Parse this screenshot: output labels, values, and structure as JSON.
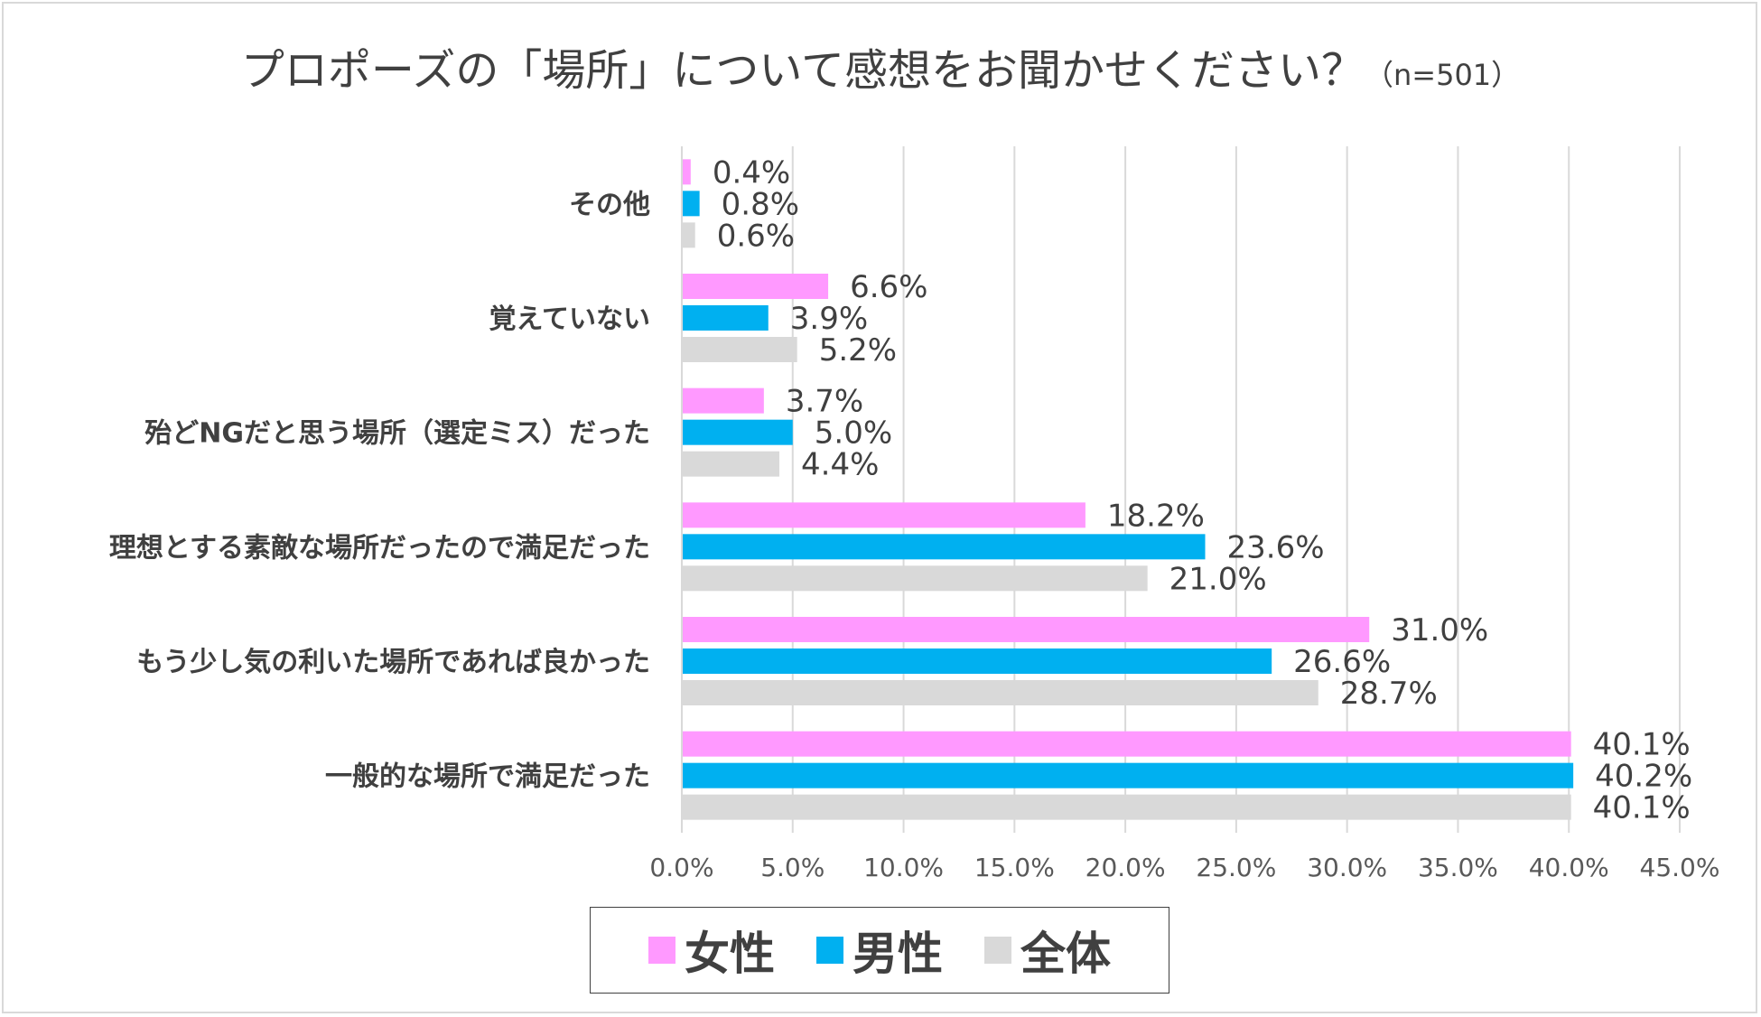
{
  "chart_data": {
    "type": "bar",
    "orientation": "horizontal",
    "title": "プロポーズの「場所」について感想をお聞かせください？",
    "subtitle": "（n=501）",
    "categories": [
      "その他",
      "覚えていない",
      "殆どNGだと思う場所（選定ミス）だった",
      "理想とする素敵な場所だったので満足だった",
      "もう少し気の利いた場所であれば良かった",
      "一般的な場所で満足だった"
    ],
    "series": [
      {
        "name": "女性",
        "color": "#ff99ff",
        "values": [
          0.4,
          6.6,
          3.7,
          18.2,
          31.0,
          40.1
        ],
        "labels": [
          "0.4%",
          "6.6%",
          "3.7%",
          "18.2%",
          "31.0%",
          "40.1%"
        ]
      },
      {
        "name": "男性",
        "color": "#00b0f0",
        "values": [
          0.8,
          3.9,
          5.0,
          23.6,
          26.6,
          40.2
        ],
        "labels": [
          "0.8%",
          "3.9%",
          "5.0%",
          "23.6%",
          "26.6%",
          "40.2%"
        ]
      },
      {
        "name": "全体",
        "color": "#d9d9d9",
        "values": [
          0.6,
          5.2,
          4.4,
          21.0,
          28.7,
          40.1
        ],
        "labels": [
          "0.6%",
          "5.2%",
          "4.4%",
          "21.0%",
          "28.7%",
          "40.1%"
        ]
      }
    ],
    "xlim": [
      0,
      45
    ],
    "xticks": [
      "0.0%",
      "5.0%",
      "10.0%",
      "15.0%",
      "20.0%",
      "25.0%",
      "30.0%",
      "35.0%",
      "40.0%",
      "45.0%"
    ],
    "grid": true,
    "legend": "bottom"
  }
}
